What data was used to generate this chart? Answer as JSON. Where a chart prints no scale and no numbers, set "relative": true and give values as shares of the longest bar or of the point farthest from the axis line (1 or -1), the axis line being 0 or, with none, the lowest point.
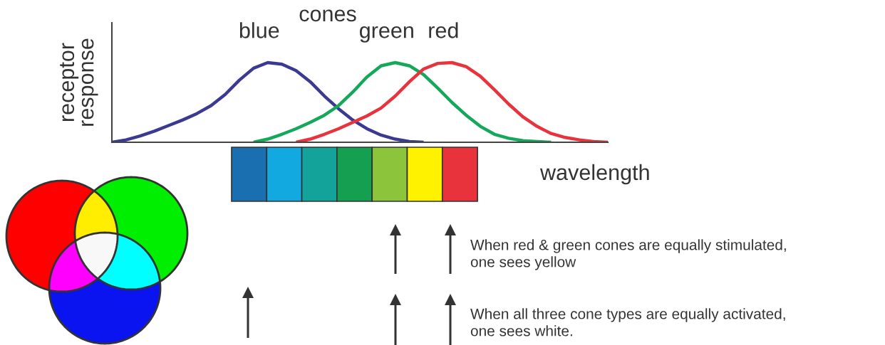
{
  "chart_data": {
    "type": "line",
    "relative": true,
    "ylabel": "receptor\nresponse",
    "xlabel": "wavelength",
    "tick_labels": false,
    "legend": false,
    "categories": [
      null,
      null,
      null,
      null,
      null,
      null,
      null,
      null,
      null,
      null,
      null,
      null,
      null,
      null,
      null,
      null,
      null,
      null,
      null,
      null,
      null,
      null,
      null,
      null,
      null,
      null,
      null,
      null,
      null,
      null,
      null,
      null,
      null,
      null,
      null,
      null
    ],
    "series": [
      {
        "name": "blue",
        "color": "#3a3a92",
        "values": [
          0,
          0.03,
          0.08,
          0.14,
          0.21,
          0.28,
          0.36,
          0.46,
          0.6,
          0.78,
          0.93,
          1.0,
          0.98,
          0.9,
          0.76,
          0.58,
          0.42,
          0.28,
          0.17,
          0.09,
          0.04,
          0.01,
          0,
          null,
          null,
          null,
          null,
          null,
          null,
          null,
          null,
          null,
          null,
          null,
          null,
          null
        ]
      },
      {
        "name": "green",
        "color": "#14a85a",
        "values": [
          null,
          null,
          null,
          null,
          null,
          null,
          null,
          null,
          null,
          null,
          0,
          0.04,
          0.1,
          0.17,
          0.25,
          0.34,
          0.46,
          0.63,
          0.82,
          0.96,
          1.0,
          0.96,
          0.85,
          0.68,
          0.5,
          0.34,
          0.2,
          0.1,
          0.05,
          0.02,
          0.01,
          0,
          null,
          null,
          null,
          null
        ]
      },
      {
        "name": "red",
        "color": "#e8333c",
        "values": [
          null,
          null,
          null,
          null,
          null,
          null,
          null,
          null,
          null,
          null,
          null,
          null,
          null,
          0,
          0.04,
          0.1,
          0.17,
          0.25,
          0.33,
          0.43,
          0.58,
          0.76,
          0.92,
          0.99,
          1.0,
          0.95,
          0.83,
          0.66,
          0.48,
          0.32,
          0.2,
          0.11,
          0.06,
          0.03,
          0.01,
          0
        ]
      }
    ],
    "annotations": [
      "cones",
      "When red & green cones are equally stimulated,\none sees yellow",
      "When all three cone types are equally activated,\none sees white."
    ]
  }
}
